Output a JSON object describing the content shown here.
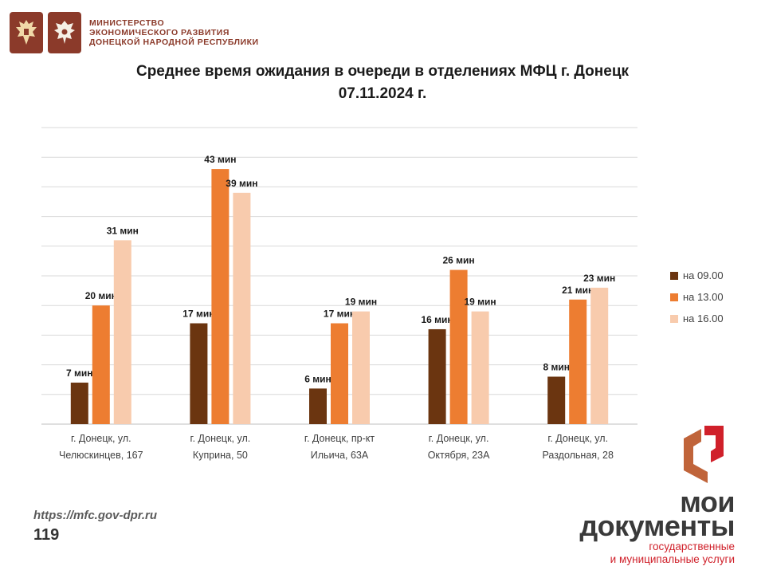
{
  "header": {
    "ministry_lines": [
      "МИНИСТЕРСТВО",
      "ЭКОНОМИЧЕСКОГО РАЗВИТИЯ",
      "ДОНЕЦКОЙ НАРОДНОЙ РЕСПУБЛИКИ"
    ]
  },
  "chart_title": [
    "Среднее время ожидания в очереди в отделениях МФЦ г. Донецк",
    "07.11.2024 г."
  ],
  "colors": {
    "s1": "#6b3510",
    "s2": "#ed7d31",
    "s3": "#f8cbad",
    "grid": "#d9d9d9",
    "axis": "#bfbfbf",
    "label": "#404040"
  },
  "chart_data": {
    "type": "bar",
    "title": "Среднее время ожидания в очереди в отделениях МФЦ г. Донецк 07.11.2024 г.",
    "categories": [
      [
        "г. Донецк, ул.",
        "Челюскинцев, 167"
      ],
      [
        "г. Донецк, ул.",
        "Куприна, 50"
      ],
      [
        "г. Донецк, пр-кт",
        "Ильича, 63А"
      ],
      [
        "г. Донецк, ул.",
        "Октября, 23А"
      ],
      [
        "г. Донецк, ул.",
        "Раздольная, 28"
      ]
    ],
    "series": [
      {
        "name": "на 09.00",
        "values": [
          7,
          17,
          6,
          16,
          8
        ],
        "labels": [
          "7 мин",
          "17 мин",
          "6 мин",
          "16 мин",
          "8 мин"
        ]
      },
      {
        "name": "на 13.00",
        "values": [
          20,
          43,
          17,
          26,
          21
        ],
        "labels": [
          "20 мин",
          "43 мин",
          "17 мин",
          "26 мин",
          "21 мин"
        ]
      },
      {
        "name": "на 16.00",
        "values": [
          31,
          39,
          19,
          19,
          23
        ],
        "labels": [
          "31 мин",
          "39 мин",
          "19 мин",
          "19 мин",
          "23 мин"
        ]
      }
    ],
    "ylim": [
      0,
      50
    ],
    "grid": true,
    "legend_position": "right"
  },
  "footer": {
    "url": "https://mfc.gov-dpr.ru",
    "page_number": "119"
  },
  "brand": {
    "name_line1": "мои",
    "name_line2": "документы",
    "tagline_line1": "государственные",
    "tagline_line2": "и муниципальные услуги"
  }
}
